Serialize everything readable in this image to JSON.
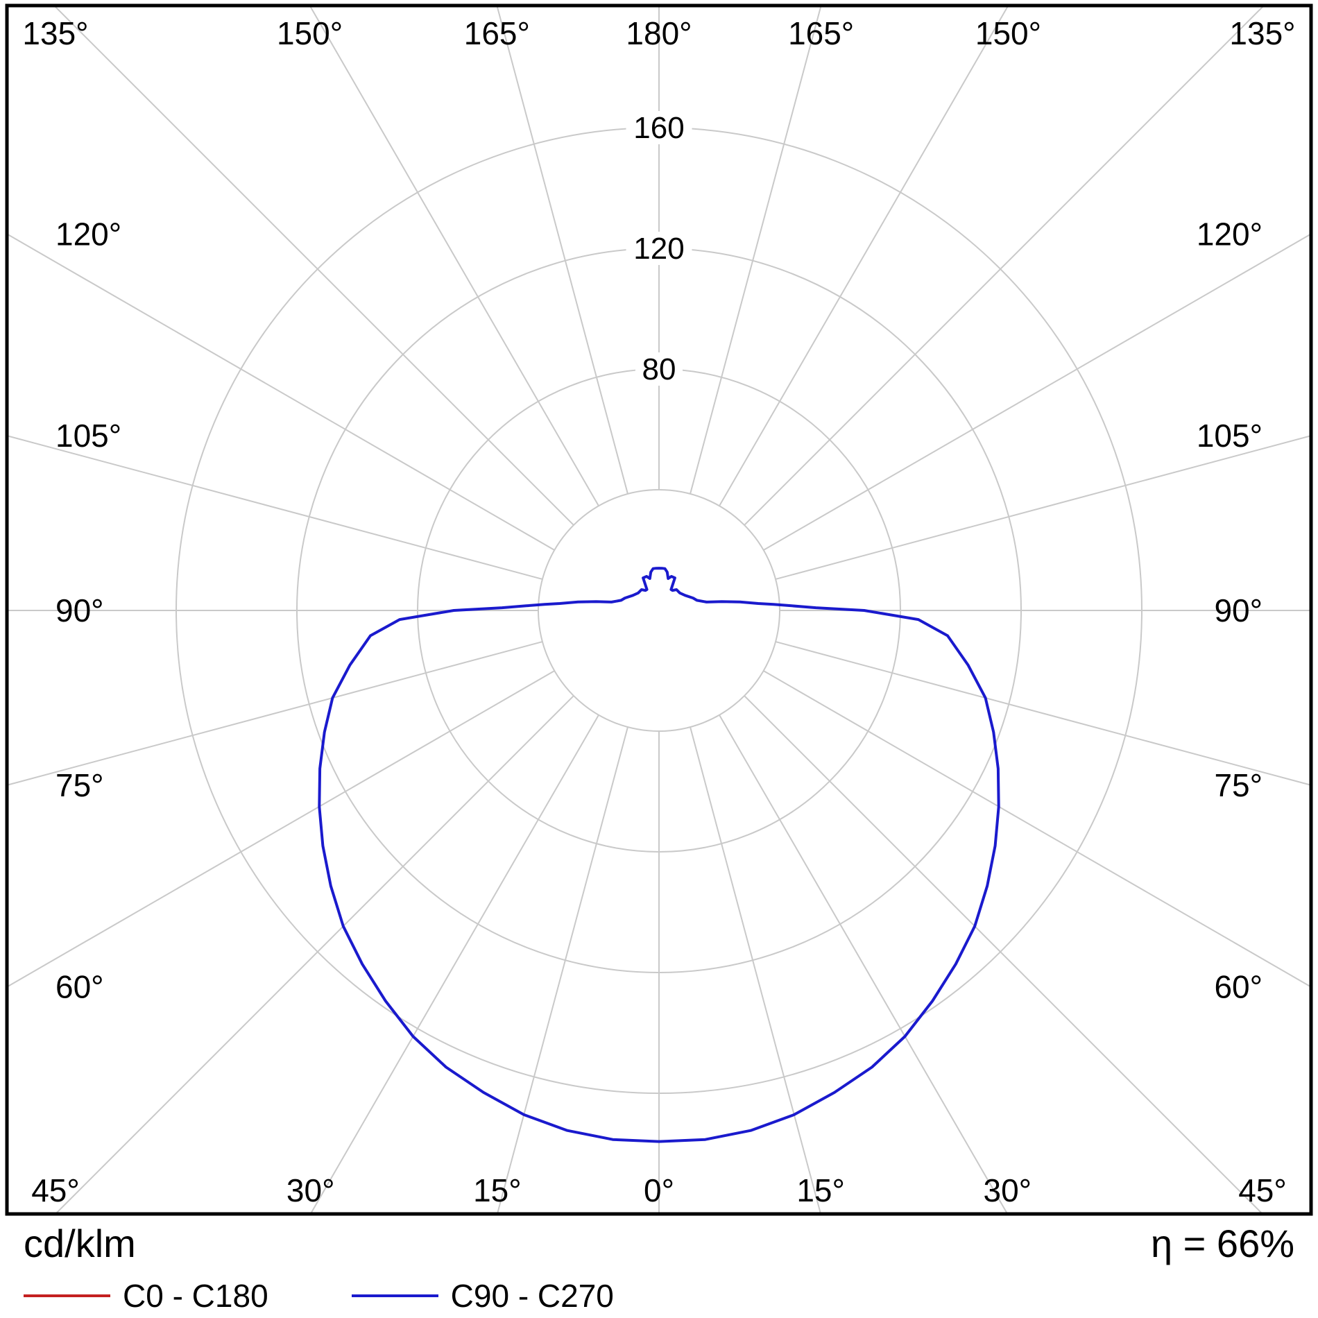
{
  "chart_data": {
    "type": "polar",
    "units_label": "cd/klm",
    "efficiency_label": "η = 66%",
    "angle_step_deg": 15,
    "angle_labels_deg": [
      0,
      15,
      30,
      45,
      60,
      75,
      90,
      105,
      120,
      135,
      150,
      165,
      180
    ],
    "angle_labels": [
      "0°",
      "15°",
      "30°",
      "45°",
      "60°",
      "75°",
      "90°",
      "105°",
      "120°",
      "135°",
      "150°",
      "165°",
      "180°"
    ],
    "radial_circles": [
      40,
      80,
      120,
      160
    ],
    "radial_axis_values": [
      80,
      120,
      160
    ],
    "radial_axis_labels": [
      "80",
      "120",
      "160"
    ],
    "radial_unit": "cd/klm",
    "grid_color": "#c9c9c9",
    "frame_color": "#000000",
    "series": [
      {
        "name": "C0 - C180",
        "color": "#c42020",
        "points": [
          [
            0,
            176
          ],
          [
            5,
            176
          ],
          [
            10,
            175
          ],
          [
            15,
            173
          ],
          [
            20,
            170
          ],
          [
            25,
            167
          ],
          [
            30,
            163
          ],
          [
            35,
            158
          ],
          [
            40,
            153
          ],
          [
            45,
            148
          ],
          [
            50,
            142
          ],
          [
            55,
            136
          ],
          [
            60,
            130
          ],
          [
            65,
            124
          ],
          [
            70,
            118
          ],
          [
            75,
            112
          ],
          [
            80,
            104
          ],
          [
            85,
            96
          ],
          [
            88,
            86
          ],
          [
            90,
            68
          ],
          [
            91,
            52
          ],
          [
            92,
            44
          ],
          [
            93,
            38
          ],
          [
            94,
            33
          ],
          [
            96,
            27
          ],
          [
            98,
            21
          ],
          [
            100,
            16
          ],
          [
            105,
            13
          ],
          [
            110,
            12
          ],
          [
            120,
            10
          ],
          [
            130,
            9
          ],
          [
            140,
            9
          ],
          [
            146,
            8
          ],
          [
            150,
            8
          ],
          [
            154,
            12
          ],
          [
            160,
            12
          ],
          [
            164,
            11
          ],
          [
            168,
            13
          ],
          [
            172,
            14
          ],
          [
            176,
            14
          ],
          [
            180,
            14
          ]
        ]
      },
      {
        "name": "C90 - C270",
        "color": "#1a1acd",
        "points": [
          [
            0,
            176
          ],
          [
            5,
            176
          ],
          [
            10,
            175
          ],
          [
            15,
            173
          ],
          [
            20,
            170
          ],
          [
            25,
            167
          ],
          [
            30,
            163
          ],
          [
            35,
            158
          ],
          [
            40,
            153
          ],
          [
            45,
            148
          ],
          [
            50,
            142
          ],
          [
            55,
            136
          ],
          [
            60,
            130
          ],
          [
            65,
            124
          ],
          [
            70,
            118
          ],
          [
            75,
            112
          ],
          [
            80,
            104
          ],
          [
            85,
            96
          ],
          [
            88,
            86
          ],
          [
            90,
            68
          ],
          [
            91,
            52
          ],
          [
            92,
            44
          ],
          [
            93,
            38
          ],
          [
            94,
            33
          ],
          [
            96,
            27
          ],
          [
            98,
            21
          ],
          [
            100,
            16
          ],
          [
            105,
            13
          ],
          [
            110,
            12
          ],
          [
            120,
            10
          ],
          [
            130,
            9
          ],
          [
            140,
            9
          ],
          [
            146,
            8
          ],
          [
            150,
            8
          ],
          [
            154,
            12
          ],
          [
            160,
            12
          ],
          [
            164,
            11
          ],
          [
            168,
            13
          ],
          [
            172,
            14
          ],
          [
            176,
            14
          ],
          [
            180,
            14
          ]
        ]
      }
    ],
    "legend": [
      {
        "label": "C0 - C180",
        "color": "#c42020"
      },
      {
        "label": "C90 - C270",
        "color": "#1a1acd"
      }
    ]
  }
}
